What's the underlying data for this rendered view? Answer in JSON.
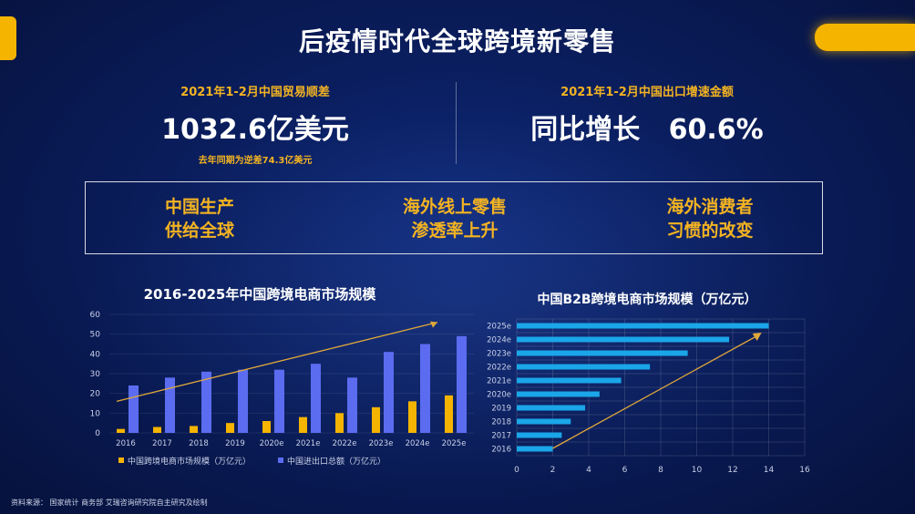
{
  "title": "后疫情时代全球跨境新零售",
  "stats": {
    "left": {
      "label": "2021年1-2月中国贸易顺差",
      "value": "1032.6亿美元",
      "note": "去年同期为逆差74.3亿美元"
    },
    "right": {
      "label": "2021年1-2月中国出口增速金额",
      "value": "同比增长   60.6%"
    }
  },
  "drivers": [
    {
      "line1": "中国生产",
      "line2": "供给全球"
    },
    {
      "line1": "海外线上零售",
      "line2": "渗透率上升"
    },
    {
      "line1": "海外消费者",
      "line2": "习惯的改变"
    }
  ],
  "footer": "资料来源：   国家统计   商务部   艾瑞咨询研究院自主研究及绘制",
  "colors": {
    "accent": "#f3b322",
    "bar_blue": "#5b6cf0",
    "bar_orange": "#f5b400",
    "hbar_cyan": "#1aa6e8",
    "arrow": "#e0a83a"
  },
  "chart_data": [
    {
      "type": "bar",
      "title": "2016-2025年中国跨境电商市场规模",
      "categories": [
        "2016",
        "2017",
        "2018",
        "2019",
        "2020e",
        "2021e",
        "2022e",
        "2023e",
        "2024e",
        "2025e"
      ],
      "series": [
        {
          "name": "中国跨境电商市场规模（万亿元）",
          "values": [
            2,
            3,
            3.5,
            5,
            6,
            8,
            10,
            13,
            16,
            19
          ]
        },
        {
          "name": "中国进出口总额（万亿元）",
          "values": [
            24,
            28,
            31,
            32,
            32,
            35,
            28,
            41,
            45,
            49
          ]
        }
      ],
      "ylim": [
        0,
        60
      ],
      "yticks": [
        0,
        10,
        20,
        30,
        40,
        50,
        60
      ],
      "legend": "bottom"
    },
    {
      "type": "bar",
      "orientation": "horizontal",
      "title": "中国B2B跨境电商市场规模（万亿元）",
      "categories": [
        "2016",
        "2017",
        "2018",
        "2019",
        "2020e",
        "2021e",
        "2022e",
        "2023e",
        "2024e",
        "2025e"
      ],
      "values": [
        2,
        2.5,
        3,
        3.8,
        4.6,
        5.8,
        7.4,
        9.5,
        11.8,
        14
      ],
      "xlim": [
        0,
        16
      ],
      "xticks": [
        0,
        2,
        4,
        6,
        8,
        10,
        12,
        14,
        16
      ]
    }
  ]
}
